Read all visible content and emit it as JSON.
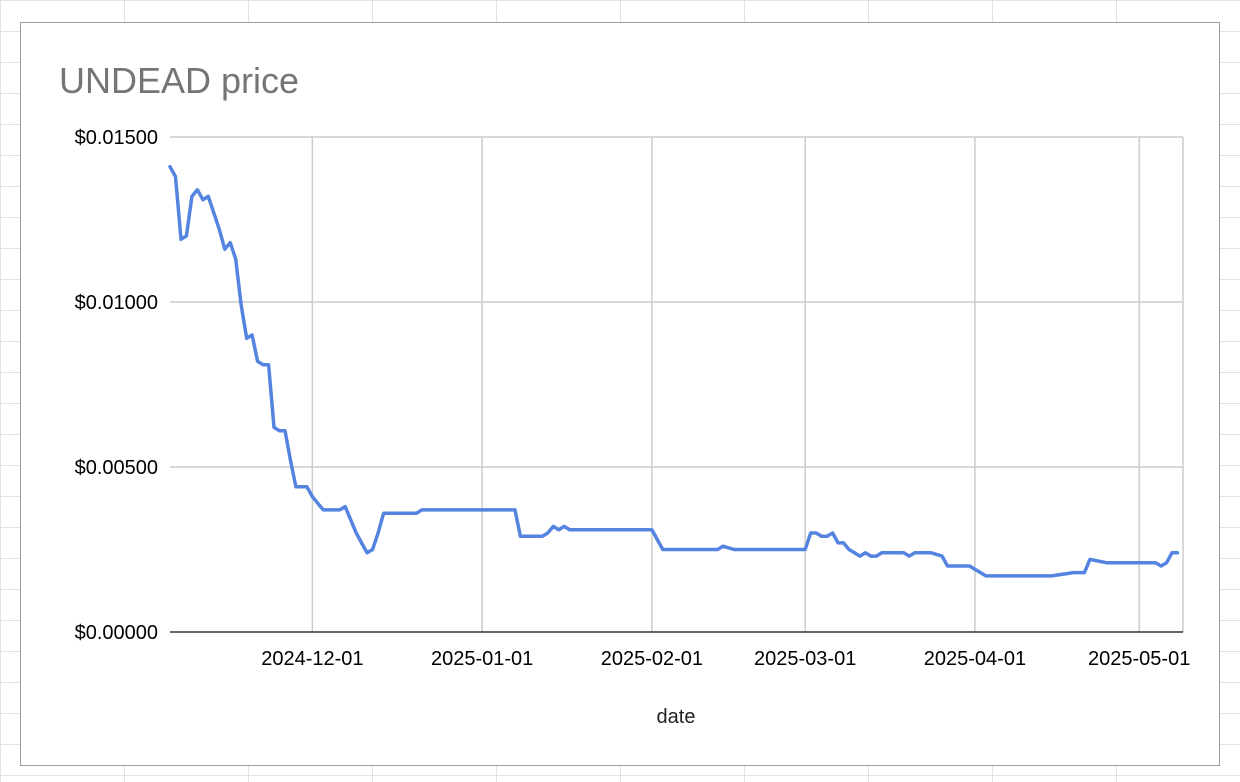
{
  "chart_data": {
    "type": "line",
    "title": "UNDEAD price",
    "xlabel": "date",
    "ylabel": "",
    "x_type": "date",
    "xlim": [
      "2024-11-05",
      "2025-05-09"
    ],
    "ylim": [
      0,
      0.015
    ],
    "grid": true,
    "legend": "none",
    "y_ticks": [
      {
        "value": 0,
        "label": "$0.00000"
      },
      {
        "value": 0.005,
        "label": "$0.00500"
      },
      {
        "value": 0.01,
        "label": "$0.01000"
      },
      {
        "value": 0.015,
        "label": "$0.01500"
      }
    ],
    "x_ticks": [
      {
        "value": "2024-12-01",
        "label": "2024-12-01"
      },
      {
        "value": "2025-01-01",
        "label": "2025-01-01"
      },
      {
        "value": "2025-02-01",
        "label": "2025-02-01"
      },
      {
        "value": "2025-03-01",
        "label": "2025-03-01"
      },
      {
        "value": "2025-04-01",
        "label": "2025-04-01"
      },
      {
        "value": "2025-05-01",
        "label": "2025-05-01"
      }
    ],
    "series": [
      {
        "color": "#5584e0",
        "points": [
          [
            "2024-11-05",
            0.0141
          ],
          [
            "2024-11-06",
            0.0138
          ],
          [
            "2024-11-07",
            0.0119
          ],
          [
            "2024-11-08",
            0.012
          ],
          [
            "2024-11-09",
            0.0132
          ],
          [
            "2024-11-10",
            0.0134
          ],
          [
            "2024-11-11",
            0.0131
          ],
          [
            "2024-11-12",
            0.0132
          ],
          [
            "2024-11-13",
            0.0127
          ],
          [
            "2024-11-14",
            0.0122
          ],
          [
            "2024-11-15",
            0.0116
          ],
          [
            "2024-11-16",
            0.0118
          ],
          [
            "2024-11-17",
            0.0113
          ],
          [
            "2024-11-18",
            0.0099
          ],
          [
            "2024-11-19",
            0.0089
          ],
          [
            "2024-11-20",
            0.009
          ],
          [
            "2024-11-21",
            0.0082
          ],
          [
            "2024-11-22",
            0.0081
          ],
          [
            "2024-11-23",
            0.0081
          ],
          [
            "2024-11-24",
            0.0062
          ],
          [
            "2024-11-25",
            0.0061
          ],
          [
            "2024-11-26",
            0.0061
          ],
          [
            "2024-11-27",
            0.0052
          ],
          [
            "2024-11-28",
            0.0044
          ],
          [
            "2024-11-29",
            0.0044
          ],
          [
            "2024-11-30",
            0.0044
          ],
          [
            "2024-12-01",
            0.0041
          ],
          [
            "2024-12-02",
            0.0039
          ],
          [
            "2024-12-03",
            0.0037
          ],
          [
            "2024-12-04",
            0.0037
          ],
          [
            "2024-12-05",
            0.0037
          ],
          [
            "2024-12-06",
            0.0037
          ],
          [
            "2024-12-07",
            0.0038
          ],
          [
            "2024-12-08",
            0.0034
          ],
          [
            "2024-12-09",
            0.003
          ],
          [
            "2024-12-10",
            0.0027
          ],
          [
            "2024-12-11",
            0.0024
          ],
          [
            "2024-12-12",
            0.0025
          ],
          [
            "2024-12-13",
            0.003
          ],
          [
            "2024-12-14",
            0.0036
          ],
          [
            "2024-12-15",
            0.0036
          ],
          [
            "2024-12-16",
            0.0036
          ],
          [
            "2024-12-17",
            0.0036
          ],
          [
            "2024-12-18",
            0.0036
          ],
          [
            "2024-12-19",
            0.0036
          ],
          [
            "2024-12-20",
            0.0036
          ],
          [
            "2024-12-21",
            0.0037
          ],
          [
            "2024-12-25",
            0.0037
          ],
          [
            "2024-12-31",
            0.0037
          ],
          [
            "2025-01-06",
            0.0037
          ],
          [
            "2025-01-07",
            0.0037
          ],
          [
            "2025-01-08",
            0.0029
          ],
          [
            "2025-01-09",
            0.0029
          ],
          [
            "2025-01-12",
            0.0029
          ],
          [
            "2025-01-13",
            0.003
          ],
          [
            "2025-01-14",
            0.0032
          ],
          [
            "2025-01-15",
            0.0031
          ],
          [
            "2025-01-16",
            0.0032
          ],
          [
            "2025-01-17",
            0.0031
          ],
          [
            "2025-01-20",
            0.0031
          ],
          [
            "2025-01-22",
            0.0031
          ],
          [
            "2025-01-26",
            0.0031
          ],
          [
            "2025-01-31",
            0.0031
          ],
          [
            "2025-02-01",
            0.0031
          ],
          [
            "2025-02-02",
            0.0028
          ],
          [
            "2025-02-03",
            0.0025
          ],
          [
            "2025-02-06",
            0.0025
          ],
          [
            "2025-02-09",
            0.0025
          ],
          [
            "2025-02-12",
            0.0025
          ],
          [
            "2025-02-13",
            0.0025
          ],
          [
            "2025-02-14",
            0.0026
          ],
          [
            "2025-02-16",
            0.0025
          ],
          [
            "2025-02-18",
            0.0025
          ],
          [
            "2025-02-22",
            0.0025
          ],
          [
            "2025-02-26",
            0.0025
          ],
          [
            "2025-02-28",
            0.0025
          ],
          [
            "2025-03-01",
            0.0025
          ],
          [
            "2025-03-02",
            0.003
          ],
          [
            "2025-03-03",
            0.003
          ],
          [
            "2025-03-04",
            0.0029
          ],
          [
            "2025-03-05",
            0.0029
          ],
          [
            "2025-03-06",
            0.003
          ],
          [
            "2025-03-07",
            0.0027
          ],
          [
            "2025-03-08",
            0.0027
          ],
          [
            "2025-03-09",
            0.0025
          ],
          [
            "2025-03-10",
            0.0024
          ],
          [
            "2025-03-11",
            0.0023
          ],
          [
            "2025-03-12",
            0.0024
          ],
          [
            "2025-03-13",
            0.0023
          ],
          [
            "2025-03-14",
            0.0023
          ],
          [
            "2025-03-15",
            0.0024
          ],
          [
            "2025-03-16",
            0.0024
          ],
          [
            "2025-03-18",
            0.0024
          ],
          [
            "2025-03-19",
            0.0024
          ],
          [
            "2025-03-20",
            0.0023
          ],
          [
            "2025-03-21",
            0.0024
          ],
          [
            "2025-03-22",
            0.0024
          ],
          [
            "2025-03-24",
            0.0024
          ],
          [
            "2025-03-26",
            0.0023
          ],
          [
            "2025-03-27",
            0.002
          ],
          [
            "2025-03-31",
            0.002
          ],
          [
            "2025-04-01",
            0.0019
          ],
          [
            "2025-04-03",
            0.0017
          ],
          [
            "2025-04-07",
            0.0017
          ],
          [
            "2025-04-11",
            0.0017
          ],
          [
            "2025-04-15",
            0.0017
          ],
          [
            "2025-04-19",
            0.0018
          ],
          [
            "2025-04-21",
            0.0018
          ],
          [
            "2025-04-22",
            0.0022
          ],
          [
            "2025-04-25",
            0.0021
          ],
          [
            "2025-04-29",
            0.0021
          ],
          [
            "2025-05-04",
            0.0021
          ],
          [
            "2025-05-05",
            0.002
          ],
          [
            "2025-05-06",
            0.0021
          ],
          [
            "2025-05-07",
            0.0024
          ],
          [
            "2025-05-08",
            0.0024
          ]
        ]
      }
    ]
  }
}
